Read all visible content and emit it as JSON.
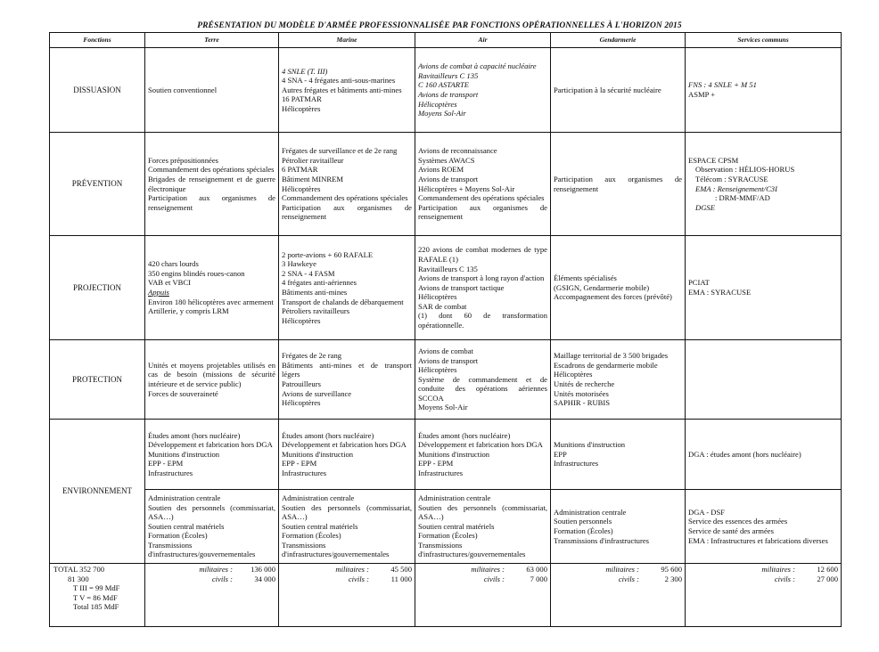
{
  "title": "PRÉSENTATION DU MODÈLE D'ARMÉE PROFESSIONNALISÉE PAR FONCTIONS OPÉRATIONNELLES À L'HORIZON 2015",
  "headers": [
    "Fonctions",
    "Terre",
    "Marine",
    "Air",
    "Gendarmerie",
    "Services communs"
  ],
  "rows": [
    {
      "fonction": "DISSUASION",
      "cells": [
        [
          {
            "t": "Soutien conventionnel"
          }
        ],
        [
          {
            "t": "4 SNLE (T. III)",
            "em": true
          },
          {
            "t": "4 SNA - 4 frégates anti-sous-marines"
          },
          {
            "t": "Autres frégates et bâtiments anti-mines"
          },
          {
            "t": "16 PATMAR"
          },
          {
            "t": "Hélicoptères"
          }
        ],
        [
          {
            "t": "Avions de combat à capacité nucléaire",
            "em": true
          },
          {
            "t": "Ravitailleurs C 135",
            "em": true
          },
          {
            "t": "C 160 ASTARTE",
            "em": true
          },
          {
            "t": "Avions de transport",
            "em": true
          },
          {
            "t": "Hélicoptères",
            "em": true
          },
          {
            "t": "Moyens Sol-Air",
            "em": true
          }
        ],
        [
          {
            "t": "Participation à la sécurité nucléaire"
          }
        ],
        [
          {
            "t": "FNS : 4 SNLE + M 51",
            "em": true
          },
          {
            "t": "ASMP +"
          }
        ]
      ]
    },
    {
      "fonction": "PRÉVENTION",
      "cells": [
        [
          {
            "t": "Forces prépositionnées"
          },
          {
            "t": "Commandement des opérations spéciales"
          },
          {
            "t": "Brigades de renseignement et de guerre électronique"
          },
          {
            "t": "Participation aux organismes de renseignement"
          }
        ],
        [
          {
            "t": "Frégates de surveillance et de 2e rang"
          },
          {
            "t": "Pétrolier ravitailleur"
          },
          {
            "t": "6 PATMAR"
          },
          {
            "t": "Bâtiment MINREM"
          },
          {
            "t": "Hélicoptères"
          },
          {
            "t": "Commandement des opérations spéciales"
          },
          {
            "t": "Participation aux organismes de renseignement"
          }
        ],
        [
          {
            "t": "Avions de reconnaissance"
          },
          {
            "t": "Systèmes AWACS"
          },
          {
            "t": "Avions ROEM"
          },
          {
            "t": "Avions de transport"
          },
          {
            "t": "Hélicoptères + Moyens Sol-Air"
          },
          {
            "t": "Commandement des opérations spéciales"
          },
          {
            "t": "Participation aux organismes de renseignement"
          }
        ],
        [
          {
            "t": "Participation aux organismes de renseignement"
          }
        ],
        [
          {
            "t": "ESPACE CPSM"
          },
          {
            "t": "Observation : HÉLIOS-HORUS",
            "ind": 1
          },
          {
            "t": "Télécom : SYRACUSE",
            "ind": 1
          },
          {
            "t": "EMA : Renseignement/C3I",
            "ind": 1,
            "em": true
          },
          {
            "t": ": DRM-MMF/AD",
            "ind": 2
          },
          {
            "t": "DGSE",
            "ind": 1,
            "em": true
          }
        ]
      ]
    },
    {
      "fonction": "PROJECTION",
      "cells": [
        [
          {
            "t": "420 chars lourds"
          },
          {
            "t": "350 engins blindés roues-canon"
          },
          {
            "t": "VAB et VBCI"
          },
          {
            "t": "Appuis",
            "ul": true
          },
          {
            "t": "Environ 180 hélicoptères avec armement"
          },
          {
            "t": "Artillerie, y compris LRM"
          }
        ],
        [
          {
            "t": "2 porte-avions + 60 RAFALE"
          },
          {
            "t": "3 Hawkeye"
          },
          {
            "t": "2 SNA - 4 FASM"
          },
          {
            "t": "4 frégates anti-aériennes"
          },
          {
            "t": "Bâtiments anti-mines"
          },
          {
            "t": "Transport de chalands de débarquement"
          },
          {
            "t": "Pétroliers ravitailleurs"
          },
          {
            "t": "Hélicoptères"
          }
        ],
        [
          {
            "t": "220 avions de combat modernes de type RAFALE (1)"
          },
          {
            "t": "Ravitailleurs C 135"
          },
          {
            "t": "Avions de transport à long rayon d'action"
          },
          {
            "t": "Avions de transport tactique"
          },
          {
            "t": "Hélicoptères"
          },
          {
            "t": "SAR de combat"
          },
          {
            "t": "(1) dont 60 de transformation opérationnelle."
          }
        ],
        [
          {
            "t": "Éléments spécialisés"
          },
          {
            "t": "(GSIGN, Gendarmerie mobile)"
          },
          {
            "t": " "
          },
          {
            "t": "Accompagnement des forces (prévôté)"
          }
        ],
        [
          {
            "t": "PCIAT"
          },
          {
            "t": "EMA : SYRACUSE"
          }
        ]
      ]
    },
    {
      "fonction": "PROTECTION",
      "cells": [
        [
          {
            "t": "Unités et moyens projetables utilisés en cas de besoin (missions de sécurité intérieure et de service public)"
          },
          {
            "t": "Forces de souveraineté"
          }
        ],
        [
          {
            "t": "Frégates de 2e rang"
          },
          {
            "t": "Bâtiments anti-mines et de transport légers"
          },
          {
            "t": "Patrouilleurs"
          },
          {
            "t": "Avions de surveillance"
          },
          {
            "t": "Hélicoptères"
          }
        ],
        [
          {
            "t": "Avions de combat"
          },
          {
            "t": "Avions de transport"
          },
          {
            "t": "Hélicoptères"
          },
          {
            "t": "Système de commandement et de conduite des opérations aériennes SCCOA"
          },
          {
            "t": "Moyens Sol-Air"
          }
        ],
        [
          {
            "t": "Maillage territorial de 3 500 brigades"
          },
          {
            "t": "Escadrons de gendarmerie mobile"
          },
          {
            "t": "Hélicoptères"
          },
          {
            "t": "Unités de recherche"
          },
          {
            "t": "Unités motorisées"
          },
          {
            "t": "SAPHIR - RUBIS"
          }
        ],
        []
      ]
    },
    {
      "fonction": "ENVIRONNEMENT",
      "cells": [
        [
          {
            "t": "Études amont (hors nucléaire)"
          },
          {
            "t": "Développement et fabrication hors DGA"
          },
          {
            "t": "Munitions d'instruction"
          },
          {
            "t": "EPP - EPM"
          },
          {
            "t": "Infrastructures"
          }
        ],
        [
          {
            "t": "Études amont (hors nucléaire)"
          },
          {
            "t": "Développement et fabrication hors DGA"
          },
          {
            "t": "Munitions d'instruction"
          },
          {
            "t": "EPP - EPM"
          },
          {
            "t": "Infrastructures"
          }
        ],
        [
          {
            "t": "Études amont (hors nucléaire)"
          },
          {
            "t": "Développement et fabrication hors DGA"
          },
          {
            "t": "Munitions d'instruction"
          },
          {
            "t": "EPP - EPM"
          },
          {
            "t": "Infrastructures"
          }
        ],
        [
          {
            "t": "Munitions d'instruction"
          },
          {
            "t": "EPP"
          },
          {
            "t": "Infrastructures"
          }
        ],
        [
          {
            "t": "DGA : études amont (hors nucléaire)"
          }
        ]
      ],
      "cells2": [
        [
          {
            "t": "Administration centrale"
          },
          {
            "t": "Soutien des personnels (commissariat, ASA…)"
          },
          {
            "t": "Soutien central matériels"
          },
          {
            "t": "Formation (Écoles)"
          },
          {
            "t": "Transmissions d'infrastructures/gouvernementales"
          }
        ],
        [
          {
            "t": "Administration centrale"
          },
          {
            "t": "Soutien des personnels (commissariat, ASA…)"
          },
          {
            "t": "Soutien central matériels"
          },
          {
            "t": "Formation (Écoles)"
          },
          {
            "t": "Transmissions d'infrastructures/gouvernementales"
          }
        ],
        [
          {
            "t": "Administration centrale"
          },
          {
            "t": "Soutien des personnels (commissariat, ASA…)"
          },
          {
            "t": "Soutien central matériels"
          },
          {
            "t": "Formation (Écoles)"
          },
          {
            "t": "Transmissions d'infrastructures/gouvernementales"
          }
        ],
        [
          {
            "t": "Administration centrale"
          },
          {
            "t": "Soutien personnels"
          },
          {
            "t": " "
          },
          {
            "t": " "
          },
          {
            "t": "Formation (Écoles)"
          },
          {
            "t": "Transmissions d'infrastructures"
          }
        ],
        [
          {
            "t": "DGA - DSF"
          },
          {
            "t": "Service des essences des armées"
          },
          {
            "t": "Service de santé des armées"
          },
          {
            "t": "EMA : Infrastructures et fabrications diverses"
          }
        ]
      ]
    }
  ],
  "totals": {
    "summary": [
      "TOTAL 352 700",
      "81 300",
      "T III =   99 MdF",
      "T V =   86 MdF",
      "Total   185 MdF"
    ],
    "militaires_label": "militaires :",
    "civils_label": "civils :",
    "columns": [
      {
        "militaires": "136 000",
        "civils": "34 000"
      },
      {
        "militaires": "45 500",
        "civils": "11 000"
      },
      {
        "militaires": "63 000",
        "civils": "7 000"
      },
      {
        "militaires": "95 600",
        "civils": "2 300"
      },
      {
        "militaires": "12 600",
        "civils": "27 000"
      }
    ]
  }
}
